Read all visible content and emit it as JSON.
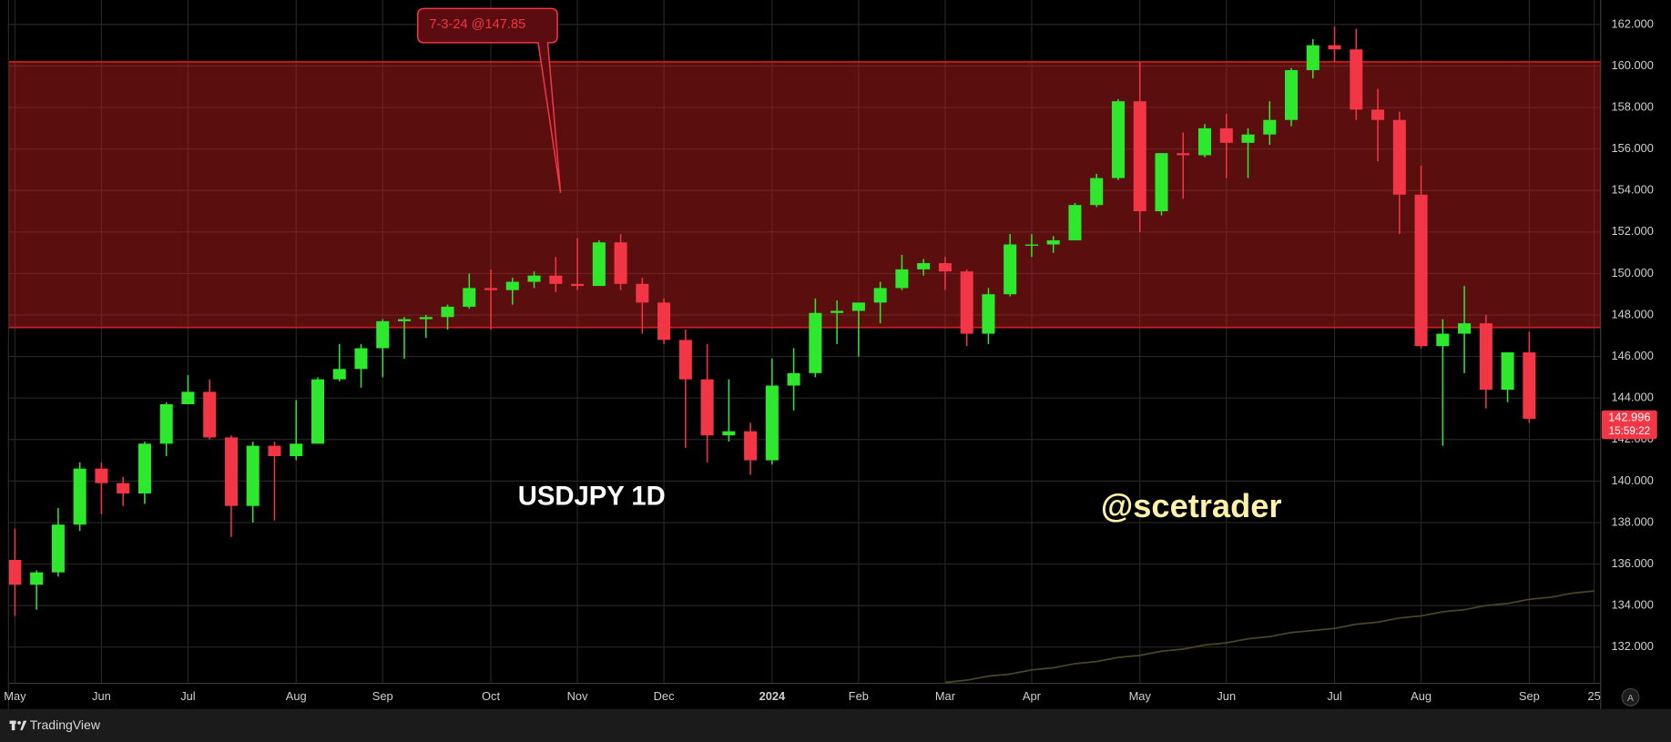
{
  "chart_data": {
    "type": "candlestick",
    "title": "USDJPY 1D",
    "watermark": "@scetrader",
    "annotation": "7-3-24 @147.85",
    "categories": [
      "May",
      null,
      null,
      null,
      "Jun",
      null,
      null,
      null,
      "Jul",
      null,
      null,
      null,
      null,
      "Aug",
      null,
      null,
      null,
      "Sep",
      null,
      null,
      null,
      null,
      "Oct",
      null,
      null,
      null,
      "Nov",
      null,
      null,
      null,
      "Dec",
      null,
      null,
      null,
      null,
      "2024",
      null,
      null,
      null,
      "Feb",
      null,
      null,
      null,
      "Mar",
      null,
      null,
      null,
      "Apr",
      null,
      null,
      null,
      null,
      "May",
      null,
      null,
      null,
      "Jun",
      null,
      null,
      null,
      null,
      "Jul",
      null,
      null,
      null,
      "Aug",
      null,
      null,
      null,
      null,
      "Sep",
      null,
      null,
      "25"
    ],
    "ohlc": {
      "open": [
        136.2,
        135.0,
        135.6,
        137.9,
        140.6,
        139.9,
        139.4,
        141.8,
        143.7,
        144.3,
        142.1,
        138.8,
        141.7,
        141.2,
        141.8,
        144.9,
        145.4,
        146.4,
        147.7,
        147.8,
        147.9,
        148.4,
        149.3,
        149.2,
        149.6,
        149.9,
        149.5,
        149.4,
        151.5,
        149.5,
        148.6,
        146.8,
        144.9,
        142.2,
        142.4,
        141.0,
        144.6,
        145.2,
        148.1,
        148.2,
        148.6,
        149.3,
        150.2,
        150.5,
        150.1,
        147.1,
        149.0,
        151.4,
        151.4,
        151.6,
        153.3,
        154.6,
        158.3,
        153.0,
        155.8,
        155.7,
        157.0,
        156.3,
        156.7,
        157.4,
        159.8,
        161.0,
        160.8,
        157.9,
        157.4,
        153.8,
        146.5,
        147.1,
        147.6,
        144.4,
        146.2,
        null,
        null,
        null
      ],
      "high": [
        137.7,
        135.7,
        138.7,
        140.9,
        140.9,
        140.2,
        141.9,
        143.8,
        145.1,
        144.9,
        142.2,
        141.9,
        141.9,
        143.9,
        145.0,
        146.6,
        146.6,
        147.8,
        147.9,
        148.0,
        148.5,
        150.0,
        150.2,
        149.8,
        150.1,
        150.8,
        151.7,
        151.6,
        151.9,
        149.8,
        148.8,
        147.3,
        146.6,
        144.9,
        142.8,
        145.9,
        146.4,
        148.8,
        148.7,
        148.5,
        149.6,
        150.9,
        150.7,
        150.8,
        150.2,
        149.3,
        151.9,
        151.9,
        151.8,
        153.4,
        154.8,
        158.4,
        160.2,
        155.8,
        156.8,
        157.2,
        157.7,
        157.0,
        158.3,
        159.9,
        161.3,
        161.9,
        161.8,
        158.9,
        157.8,
        155.2,
        147.8,
        149.4,
        148.0,
        146.2,
        147.2,
        null,
        null,
        null
      ],
      "low": [
        133.5,
        133.8,
        135.4,
        137.6,
        138.4,
        138.8,
        138.9,
        141.2,
        143.7,
        142.0,
        137.3,
        138.0,
        138.1,
        141.0,
        141.8,
        144.8,
        144.5,
        145.0,
        145.9,
        146.9,
        147.3,
        148.3,
        147.3,
        148.5,
        149.3,
        149.1,
        149.2,
        149.4,
        149.2,
        147.1,
        146.6,
        141.6,
        140.9,
        141.9,
        140.3,
        140.8,
        143.4,
        145.0,
        146.6,
        146.0,
        147.6,
        149.2,
        149.9,
        149.2,
        146.5,
        146.6,
        148.9,
        150.8,
        151.0,
        151.6,
        153.2,
        154.5,
        152.0,
        152.8,
        153.6,
        155.6,
        154.6,
        154.6,
        156.2,
        157.1,
        159.4,
        160.2,
        157.4,
        155.4,
        151.9,
        146.4,
        141.7,
        145.2,
        143.5,
        143.8,
        142.8,
        null,
        null,
        null
      ],
      "close": [
        135.0,
        135.6,
        137.9,
        140.6,
        139.9,
        139.4,
        141.8,
        143.7,
        144.3,
        142.1,
        138.8,
        141.7,
        141.2,
        141.8,
        144.9,
        145.4,
        146.4,
        147.7,
        147.8,
        147.9,
        148.4,
        149.3,
        149.2,
        149.6,
        149.9,
        149.5,
        149.4,
        151.5,
        149.5,
        148.6,
        146.8,
        144.9,
        142.2,
        142.4,
        141.0,
        144.6,
        145.2,
        148.1,
        148.2,
        148.6,
        149.3,
        150.2,
        150.5,
        150.1,
        147.1,
        149.0,
        151.4,
        151.4,
        151.6,
        153.3,
        154.6,
        158.3,
        153.0,
        155.8,
        155.7,
        157.0,
        156.3,
        156.7,
        157.4,
        159.8,
        161.0,
        160.8,
        157.9,
        157.4,
        153.8,
        146.5,
        147.1,
        147.6,
        144.4,
        146.2,
        143.0,
        null,
        null,
        null
      ],
      "up_color": "#2ee82e",
      "down_color": "#f23645"
    },
    "lines": [
      {
        "color": "#4a4526",
        "values": [
          null,
          null,
          null,
          null,
          null,
          null,
          null,
          null,
          null,
          null,
          null,
          null,
          null,
          null,
          null,
          null,
          null,
          null,
          null,
          null,
          null,
          null,
          null,
          null,
          null,
          null,
          null,
          null,
          null,
          null,
          null,
          null,
          null,
          null,
          null,
          null,
          null,
          null,
          null,
          null,
          null,
          null,
          null,
          130.3,
          130.4,
          130.6,
          130.7,
          130.9,
          131.0,
          131.2,
          131.3,
          131.5,
          131.6,
          131.8,
          131.9,
          132.1,
          132.2,
          132.4,
          132.5,
          132.7,
          132.8,
          132.9,
          133.1,
          133.2,
          133.4,
          133.5,
          133.7,
          133.8,
          134.0,
          134.1,
          134.3,
          134.4,
          134.6,
          134.7
        ]
      }
    ],
    "zone": {
      "low": 147.4,
      "high": 160.2,
      "color": "#c81e1e"
    },
    "last_price": 142.996,
    "countdown": "15:59:22",
    "ylim": [
      130.25,
      163.18
    ],
    "yticks": [
      {
        "value": 132,
        "label": "132.000"
      },
      {
        "value": 134,
        "label": "134.000"
      },
      {
        "value": 136,
        "label": "136.000"
      },
      {
        "value": 138,
        "label": "138.000"
      },
      {
        "value": 140,
        "label": "140.000"
      },
      {
        "value": 142,
        "label": "142.000"
      },
      {
        "value": 144,
        "label": "144.000"
      },
      {
        "value": 146,
        "label": "146.000"
      },
      {
        "value": 148,
        "label": "148.000"
      },
      {
        "value": 150,
        "label": "150.000"
      },
      {
        "value": 152,
        "label": "152.000"
      },
      {
        "value": 154,
        "label": "154.000"
      },
      {
        "value": 156,
        "label": "156.000"
      },
      {
        "value": 158,
        "label": "158.000"
      },
      {
        "value": 160,
        "label": "160.000"
      },
      {
        "value": 162,
        "label": "162.000"
      }
    ],
    "grid": true
  },
  "ui": {
    "footer": "TradingView",
    "scale_button": "A"
  }
}
